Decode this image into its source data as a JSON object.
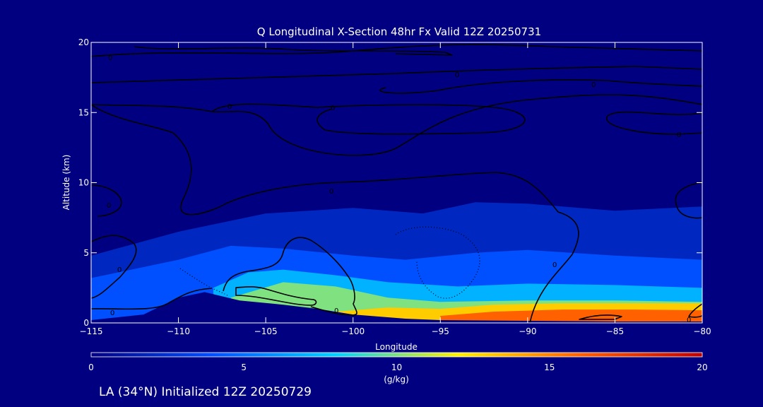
{
  "chart_data": {
    "type": "heatmap",
    "title": "Q Longitudinal X-Section 48hr  Fx Valid 12Z 20250731",
    "xlabel": "Longitude",
    "ylabel": "Altitude (km)",
    "xlim": [
      -115,
      -80
    ],
    "ylim": [
      0,
      20
    ],
    "x_ticks": [
      -115,
      -110,
      -105,
      -100,
      -95,
      -90,
      -85,
      -80
    ],
    "x_tick_labels": [
      "−115",
      "−110",
      "−105",
      "−100",
      "−95",
      "−90",
      "−85",
      "−80"
    ],
    "y_ticks": [
      0,
      5,
      10,
      15,
      20
    ],
    "y_tick_labels": [
      "0",
      "5",
      "10",
      "15",
      "20"
    ],
    "colorbar": {
      "min": 0,
      "max": 20,
      "ticks": [
        0,
        5,
        10,
        15,
        20
      ],
      "tick_labels": [
        "0",
        "5",
        "10",
        "15",
        "20"
      ],
      "label_value": "10",
      "units": "(g/kg)",
      "colors": [
        "#000080",
        "#0050ff",
        "#00d2ff",
        "#fff000",
        "#ff6000",
        "#c00000"
      ]
    },
    "surface_profile": [
      [
        -115,
        0.2
      ],
      [
        -112,
        0.6
      ],
      [
        -110,
        1.8
      ],
      [
        -108.5,
        2.2
      ],
      [
        -106.5,
        1.6
      ],
      [
        -104,
        1.3
      ],
      [
        -102,
        1.0
      ],
      [
        -100,
        0.6
      ],
      [
        -97,
        0.3
      ],
      [
        -95,
        0.2
      ],
      [
        -90,
        0.15
      ],
      [
        -85,
        0.1
      ],
      [
        -80,
        0.1
      ]
    ],
    "moisture_layers": [
      {
        "level": 2,
        "top": [
          [
            -115,
            4.8
          ],
          [
            -110,
            6.5
          ],
          [
            -105,
            7.8
          ],
          [
            -100,
            8.2
          ],
          [
            -96,
            7.8
          ],
          [
            -93,
            8.6
          ],
          [
            -90,
            8.5
          ],
          [
            -85,
            8.0
          ],
          [
            -80,
            8.3
          ]
        ]
      },
      {
        "level": 4,
        "top": [
          [
            -115,
            3.2
          ],
          [
            -110,
            4.5
          ],
          [
            -107,
            5.5
          ],
          [
            -104,
            5.3
          ],
          [
            -100,
            4.8
          ],
          [
            -97,
            4.5
          ],
          [
            -93,
            5.0
          ],
          [
            -90,
            5.2
          ],
          [
            -85,
            4.8
          ],
          [
            -80,
            4.5
          ]
        ]
      },
      {
        "level": 7,
        "top": [
          [
            -108,
            2.5
          ],
          [
            -106,
            3.6
          ],
          [
            -104,
            3.8
          ],
          [
            -101,
            3.4
          ],
          [
            -98,
            2.9
          ],
          [
            -94,
            2.6
          ],
          [
            -90,
            2.8
          ],
          [
            -85,
            2.7
          ],
          [
            -80,
            2.5
          ]
        ]
      },
      {
        "level": 10,
        "top": [
          [
            -107,
            1.8
          ],
          [
            -104,
            2.9
          ],
          [
            -101,
            2.6
          ],
          [
            -98,
            1.8
          ],
          [
            -95,
            1.5
          ],
          [
            -90,
            1.6
          ],
          [
            -85,
            1.6
          ],
          [
            -80,
            1.5
          ]
        ]
      },
      {
        "level": 13,
        "top": [
          [
            -101,
            0.8
          ],
          [
            -98,
            1.1
          ],
          [
            -95,
            1.0
          ],
          [
            -92,
            1.3
          ],
          [
            -88,
            1.4
          ],
          [
            -84,
            1.4
          ],
          [
            -80,
            1.4
          ]
        ]
      },
      {
        "level": 16,
        "top": [
          [
            -95,
            0.5
          ],
          [
            -92,
            0.8
          ],
          [
            -88,
            0.95
          ],
          [
            -84,
            0.95
          ],
          [
            -80,
            0.9
          ]
        ]
      }
    ],
    "contour_label_value": "0",
    "footer": "LA (34°N) Initialized 12Z 20250729"
  }
}
